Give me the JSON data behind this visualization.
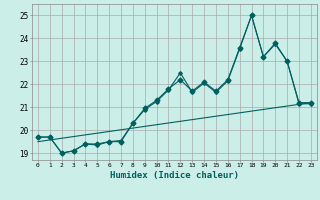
{
  "xlabel": "Humidex (Indice chaleur)",
  "bg_color": "#cceee8",
  "grid_color": "#aaaaaa",
  "line_color": "#006060",
  "xlim": [
    -0.5,
    23.5
  ],
  "ylim": [
    18.7,
    25.5
  ],
  "xticks": [
    0,
    1,
    2,
    3,
    4,
    5,
    6,
    7,
    8,
    9,
    10,
    11,
    12,
    13,
    14,
    15,
    16,
    17,
    18,
    19,
    20,
    21,
    22,
    23
  ],
  "yticks": [
    19,
    20,
    21,
    22,
    23,
    24,
    25
  ],
  "series1": {
    "x": [
      0,
      1,
      2,
      3,
      4,
      5,
      6,
      7,
      8,
      9,
      10,
      11,
      12,
      13,
      14,
      15,
      16,
      17,
      18,
      19,
      20,
      21,
      22,
      23
    ],
    "y": [
      19.7,
      19.7,
      19.0,
      19.1,
      19.4,
      19.4,
      19.5,
      19.5,
      20.3,
      20.95,
      21.3,
      21.8,
      22.2,
      21.7,
      22.1,
      21.7,
      22.2,
      23.6,
      25.0,
      23.2,
      23.8,
      23.0,
      21.2,
      21.2
    ]
  },
  "series2": {
    "x": [
      0,
      1,
      2,
      3,
      4,
      5,
      6,
      7,
      8,
      9,
      10,
      11,
      12,
      13,
      14,
      15,
      16,
      17,
      18,
      19,
      20,
      21,
      22,
      23
    ],
    "y": [
      19.7,
      19.7,
      19.0,
      19.1,
      19.4,
      19.35,
      19.5,
      19.55,
      20.3,
      20.9,
      21.25,
      21.75,
      22.5,
      21.65,
      22.05,
      21.65,
      22.15,
      23.55,
      25.0,
      23.2,
      23.75,
      23.0,
      21.15,
      21.15
    ]
  },
  "series3": {
    "x": [
      0,
      23
    ],
    "y": [
      19.5,
      21.2
    ]
  }
}
